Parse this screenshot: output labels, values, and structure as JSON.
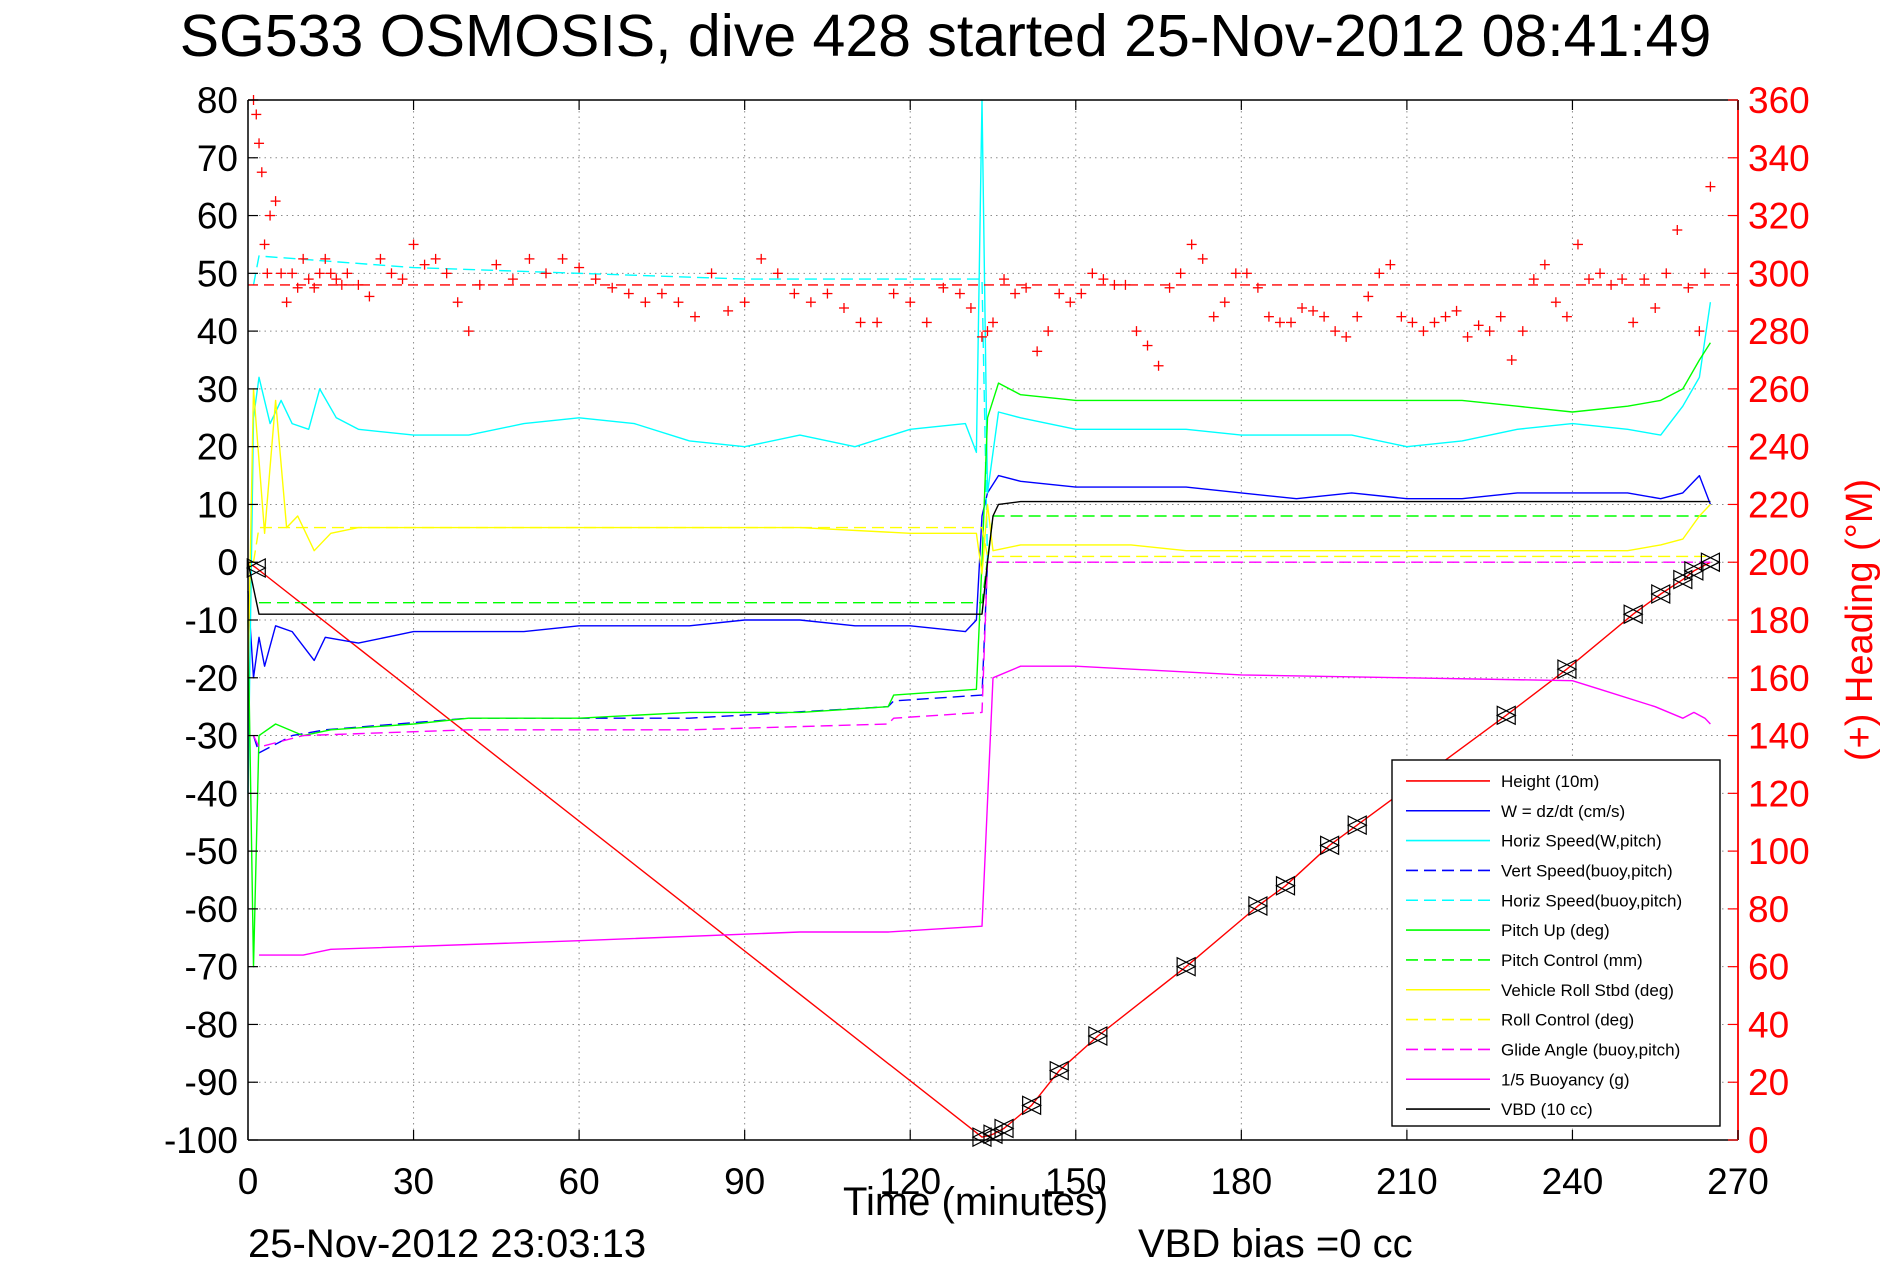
{
  "chart_data": {
    "type": "line",
    "title": "SG533 OSMOSIS, dive 428 started 25-Nov-2012 08:41:49",
    "xlabel": "Time (minutes)",
    "ylabel_right": "(+) Heading (°M)",
    "footer_date": "25-Nov-2012 23:03:13",
    "footer_note": "VBD bias =0 cc",
    "xlim": [
      0,
      270
    ],
    "ylim": [
      -100,
      80
    ],
    "y2lim": [
      0,
      360
    ],
    "xticks": [
      "0",
      "30",
      "60",
      "90",
      "120",
      "150",
      "180",
      "210",
      "240",
      "270"
    ],
    "yticks": [
      "80",
      "70",
      "60",
      "50",
      "40",
      "30",
      "20",
      "10",
      "0",
      "-10",
      "-20",
      "-30",
      "-40",
      "-50",
      "-60",
      "-70",
      "-80",
      "-90",
      "-100"
    ],
    "y2ticks": [
      "360",
      "340",
      "320",
      "300",
      "280",
      "260",
      "240",
      "220",
      "200",
      "180",
      "160",
      "140",
      "120",
      "100",
      "80",
      "60",
      "40",
      "20",
      "0"
    ],
    "grid": true,
    "legend_position": "bottom-right",
    "colors": {
      "axis_right": "#ff0000",
      "grid": "#8c8c8c"
    },
    "series": [
      {
        "name": "Height (10m)",
        "color": "#ff0000",
        "style": "solid",
        "x": [
          0,
          1.5,
          133,
          134,
          135,
          137,
          142,
          147,
          154,
          170,
          183,
          188,
          196,
          201,
          228,
          239,
          251,
          256,
          260,
          262,
          265
        ],
        "y": [
          0,
          -1,
          -99.5,
          -99.3,
          -99,
          -98,
          -94,
          -88,
          -82,
          -70,
          -59.5,
          -56,
          -49,
          -45.5,
          -26.5,
          -18.5,
          -9,
          -5.5,
          -3,
          -1.5,
          0
        ]
      },
      {
        "name": "W = dz/dt (cm/s)",
        "color": "#0000ff",
        "style": "solid",
        "x": [
          0,
          1,
          2,
          3,
          5,
          8,
          12,
          14,
          20,
          30,
          40,
          50,
          60,
          70,
          80,
          90,
          100,
          110,
          120,
          130,
          132,
          133,
          134,
          136,
          140,
          150,
          160,
          170,
          180,
          190,
          200,
          210,
          220,
          230,
          240,
          250,
          256,
          260,
          263,
          265
        ],
        "y": [
          -5,
          -20,
          -13,
          -18,
          -11,
          -12,
          -17,
          -13,
          -14,
          -12,
          -12,
          -12,
          -11,
          -11,
          -11,
          -10,
          -10,
          -11,
          -11,
          -12,
          -10,
          8,
          12,
          15,
          14,
          13,
          13,
          13,
          12,
          11,
          12,
          11,
          11,
          12,
          12,
          12,
          11,
          12,
          15,
          10
        ]
      },
      {
        "name": "Horiz Speed(W,pitch)",
        "color": "#00ffff",
        "style": "solid",
        "x": [
          0,
          1,
          2,
          4,
          6,
          8,
          11,
          13,
          16,
          20,
          30,
          40,
          50,
          60,
          70,
          80,
          90,
          100,
          110,
          120,
          130,
          132,
          133,
          134,
          136,
          140,
          150,
          160,
          170,
          180,
          190,
          200,
          210,
          220,
          230,
          240,
          250,
          256,
          260,
          263,
          265
        ],
        "y": [
          -40,
          25,
          32,
          24,
          28,
          24,
          23,
          30,
          25,
          23,
          22,
          22,
          24,
          25,
          24,
          21,
          20,
          22,
          20,
          23,
          24,
          19,
          80,
          12,
          26,
          25,
          23,
          23,
          23,
          22,
          22,
          22,
          20,
          21,
          23,
          24,
          23,
          22,
          27,
          32,
          45
        ]
      },
      {
        "name": "Vert Speed(buoy,pitch)",
        "color": "#0000ff",
        "style": "dashed",
        "x": [
          1,
          2,
          8,
          14,
          40,
          80,
          116,
          117,
          133,
          134
        ],
        "y": [
          -30,
          -33,
          -30,
          -29,
          -27,
          -27,
          -25,
          -24,
          -23,
          0
        ]
      },
      {
        "name": "Horiz Speed(buoy,pitch)",
        "color": "#00ffff",
        "style": "dashed",
        "x": [
          1,
          2,
          30,
          60,
          90,
          120,
          133,
          134
        ],
        "y": [
          48,
          53,
          51,
          50,
          49,
          49,
          49,
          0
        ]
      },
      {
        "name": "Pitch Up (deg)",
        "color": "#00ff00",
        "style": "solid",
        "x": [
          0,
          1,
          2,
          5,
          10,
          15,
          30,
          40,
          60,
          80,
          100,
          116,
          117,
          132,
          133,
          134,
          136,
          140,
          150,
          160,
          170,
          180,
          190,
          200,
          210,
          220,
          230,
          240,
          250,
          256,
          260,
          263,
          265
        ],
        "y": [
          -10,
          -70,
          -30,
          -28,
          -30,
          -29,
          -28,
          -27,
          -27,
          -26,
          -26,
          -25,
          -23,
          -22,
          0,
          25,
          31,
          29,
          28,
          28,
          28,
          28,
          28,
          28,
          28,
          28,
          27,
          26,
          27,
          28,
          30,
          35,
          38
        ]
      },
      {
        "name": "Pitch Control (mm)",
        "color": "#00ff00",
        "style": "dashed",
        "x": [
          2,
          133,
          135,
          265
        ],
        "y": [
          -7,
          -7,
          8,
          8
        ]
      },
      {
        "name": "Vehicle Roll Stbd (deg)",
        "color": "#ffff00",
        "style": "solid",
        "x": [
          0,
          1,
          3,
          5,
          7,
          9,
          12,
          15,
          20,
          40,
          60,
          80,
          100,
          120,
          132,
          133,
          134,
          135,
          140,
          150,
          160,
          170,
          180,
          190,
          200,
          210,
          220,
          230,
          240,
          250,
          256,
          260,
          263,
          265
        ],
        "y": [
          -20,
          30,
          5,
          28,
          6,
          8,
          2,
          5,
          6,
          6,
          6,
          6,
          6,
          5,
          5,
          -2,
          10,
          2,
          3,
          3,
          3,
          2,
          2,
          2,
          2,
          2,
          2,
          2,
          2,
          2,
          3,
          4,
          8,
          10
        ]
      },
      {
        "name": "Roll Control (deg)",
        "color": "#ffff00",
        "style": "dashed",
        "x": [
          1,
          2,
          133,
          134,
          265
        ],
        "y": [
          0,
          6,
          6,
          1,
          1
        ]
      },
      {
        "name": "Glide Angle (buoy,pitch)",
        "color": "#ff00ff",
        "style": "dashed",
        "x": [
          1,
          2,
          10,
          40,
          80,
          116,
          117,
          133,
          134,
          265
        ],
        "y": [
          -30,
          -32,
          -30,
          -29,
          -29,
          -28,
          -27,
          -26,
          0,
          0
        ]
      },
      {
        "name": "1/5 Buoyancy (g)",
        "color": "#ff00ff",
        "style": "solid",
        "x": [
          2,
          10,
          15,
          60,
          100,
          116,
          133,
          135,
          140,
          150,
          180,
          210,
          240,
          245,
          255,
          260,
          262,
          264,
          265
        ],
        "y": [
          -68,
          -68,
          -67,
          -65.5,
          -64,
          -64,
          -63,
          -20,
          -18,
          -18,
          -19.5,
          -20,
          -20.5,
          -22,
          -25,
          -27,
          -26,
          -27,
          -28
        ]
      },
      {
        "name": "VBD (10 cc)",
        "color": "#000000",
        "style": "solid",
        "x": [
          0,
          2,
          133,
          134,
          135,
          136,
          140,
          265
        ],
        "y": [
          0,
          -9,
          -9,
          0,
          8,
          10,
          10.5,
          10.5
        ]
      }
    ],
    "heading": {
      "name": "Heading (°M)",
      "color": "#ff0000",
      "marker": "+",
      "mean_heading": 296,
      "x": [
        1,
        1.5,
        2,
        2.5,
        3,
        3.5,
        4,
        5,
        6,
        7,
        8,
        9,
        10,
        11,
        12,
        13,
        14,
        15,
        16,
        17,
        18,
        20,
        22,
        24,
        26,
        28,
        30,
        32,
        34,
        36,
        38,
        40,
        42,
        45,
        48,
        51,
        54,
        57,
        60,
        63,
        66,
        69,
        72,
        75,
        78,
        81,
        84,
        87,
        90,
        93,
        96,
        99,
        102,
        105,
        108,
        111,
        114,
        117,
        120,
        123,
        126,
        129,
        131,
        133,
        134,
        135,
        137,
        139,
        141,
        143,
        145,
        147,
        149,
        151,
        153,
        155,
        157,
        159,
        161,
        163,
        165,
        167,
        169,
        171,
        173,
        175,
        177,
        179,
        181,
        183,
        185,
        187,
        189,
        191,
        193,
        195,
        197,
        199,
        201,
        203,
        205,
        207,
        209,
        211,
        213,
        215,
        217,
        219,
        221,
        223,
        225,
        227,
        229,
        231,
        233,
        235,
        237,
        239,
        241,
        243,
        245,
        247,
        249,
        251,
        253,
        255,
        257,
        259,
        261,
        263,
        264,
        265
      ],
      "y": [
        360,
        355,
        345,
        335,
        310,
        300,
        320,
        325,
        300,
        290,
        300,
        295,
        305,
        298,
        295,
        300,
        305,
        300,
        298,
        296,
        300,
        296,
        292,
        305,
        300,
        298,
        310,
        303,
        305,
        300,
        290,
        280,
        296,
        303,
        298,
        305,
        300,
        305,
        302,
        298,
        295,
        293,
        290,
        293,
        290,
        285,
        300,
        287,
        290,
        305,
        300,
        293,
        290,
        293,
        288,
        283,
        283,
        293,
        290,
        283,
        295,
        293,
        288,
        278,
        280,
        283,
        298,
        293,
        295,
        273,
        280,
        293,
        290,
        293,
        300,
        298,
        296,
        296,
        280,
        275,
        268,
        295,
        300,
        310,
        305,
        285,
        290,
        300,
        300,
        295,
        285,
        283,
        283,
        288,
        287,
        285,
        280,
        278,
        285,
        292,
        300,
        303,
        285,
        283,
        280,
        283,
        285,
        287,
        278,
        282,
        280,
        285,
        270,
        280,
        298,
        303,
        290,
        285,
        310,
        298,
        300,
        296,
        298,
        283,
        298,
        288,
        300,
        315,
        295,
        280,
        300,
        330
      ]
    }
  }
}
